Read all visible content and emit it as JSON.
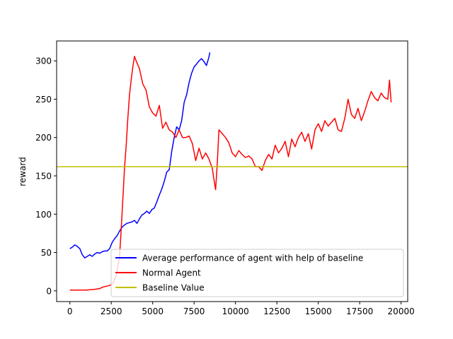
{
  "chart_data": {
    "type": "line",
    "title": "",
    "xlabel": "",
    "ylabel": "reward",
    "xlim": [
      -800,
      20400
    ],
    "ylim": [
      -14,
      326
    ],
    "xticks": [
      0,
      2500,
      5000,
      7500,
      10000,
      12500,
      15000,
      17500,
      20000
    ],
    "yticks": [
      0,
      50,
      100,
      150,
      200,
      250,
      300
    ],
    "grid": false,
    "legend_position": "lower-right",
    "series": [
      {
        "name": "Average performance of agent with help of baseline",
        "color": "#0000ff",
        "x": [
          0,
          150,
          300,
          450,
          600,
          750,
          900,
          1050,
          1200,
          1350,
          1500,
          1650,
          1800,
          1950,
          2100,
          2250,
          2400,
          2550,
          2700,
          2850,
          3000,
          3150,
          3300,
          3450,
          3600,
          3750,
          3900,
          4050,
          4200,
          4350,
          4500,
          4650,
          4800,
          4950,
          5100,
          5250,
          5400,
          5550,
          5700,
          5850,
          6000,
          6150,
          6300,
          6450,
          6600,
          6750,
          6900,
          7050,
          7200,
          7350,
          7500,
          7650,
          7800,
          7950,
          8100,
          8250,
          8400,
          8450
        ],
        "y": [
          55,
          57,
          60,
          58,
          55,
          47,
          43,
          45,
          47,
          45,
          48,
          50,
          49,
          51,
          52,
          52,
          55,
          63,
          68,
          72,
          78,
          83,
          86,
          88,
          89,
          90,
          92,
          88,
          94,
          99,
          101,
          104,
          101,
          106,
          108,
          116,
          125,
          133,
          143,
          155,
          158,
          182,
          200,
          214,
          210,
          222,
          246,
          256,
          272,
          284,
          292,
          296,
          300,
          303,
          299,
          294,
          305,
          311
        ]
      },
      {
        "name": "Normal Agent",
        "color": "#ff0000",
        "x": [
          0,
          500,
          1000,
          1500,
          1800,
          2000,
          2200,
          2400,
          2600,
          2800,
          3000,
          3100,
          3200,
          3300,
          3400,
          3500,
          3600,
          3700,
          3800,
          3900,
          4000,
          4200,
          4400,
          4600,
          4800,
          5000,
          5200,
          5400,
          5600,
          5800,
          6000,
          6200,
          6400,
          6600,
          6800,
          7000,
          7200,
          7400,
          7600,
          7800,
          8000,
          8200,
          8400,
          8600,
          8700,
          8800,
          8900,
          9000,
          9200,
          9400,
          9600,
          9800,
          10000,
          10200,
          10400,
          10600,
          10800,
          11000,
          11200,
          11400,
          11600,
          11800,
          12000,
          12200,
          12400,
          12600,
          12800,
          13000,
          13200,
          13400,
          13600,
          13800,
          14000,
          14200,
          14400,
          14600,
          14800,
          15000,
          15200,
          15400,
          15600,
          15800,
          16000,
          16200,
          16400,
          16600,
          16800,
          17000,
          17200,
          17400,
          17600,
          17800,
          18000,
          18200,
          18400,
          18600,
          18800,
          19000,
          19200,
          19300,
          19400
        ],
        "y": [
          1,
          1,
          1,
          2,
          3,
          5,
          6,
          7,
          10,
          20,
          45,
          80,
          120,
          160,
          190,
          225,
          255,
          275,
          292,
          306,
          300,
          290,
          270,
          262,
          240,
          232,
          228,
          242,
          212,
          220,
          210,
          207,
          200,
          210,
          200,
          200,
          202,
          192,
          170,
          186,
          172,
          180,
          172,
          160,
          145,
          132,
          165,
          210,
          205,
          200,
          193,
          180,
          175,
          183,
          178,
          174,
          176,
          172,
          162,
          162,
          157,
          170,
          178,
          172,
          190,
          180,
          186,
          195,
          175,
          198,
          188,
          200,
          207,
          195,
          205,
          185,
          210,
          218,
          208,
          222,
          215,
          220,
          225,
          210,
          208,
          225,
          250,
          230,
          225,
          238,
          222,
          234,
          248,
          260,
          252,
          248,
          258,
          252,
          250,
          275,
          246
        ]
      },
      {
        "name": "Baseline Value",
        "color": "#bfbf00",
        "y": 162
      }
    ]
  }
}
